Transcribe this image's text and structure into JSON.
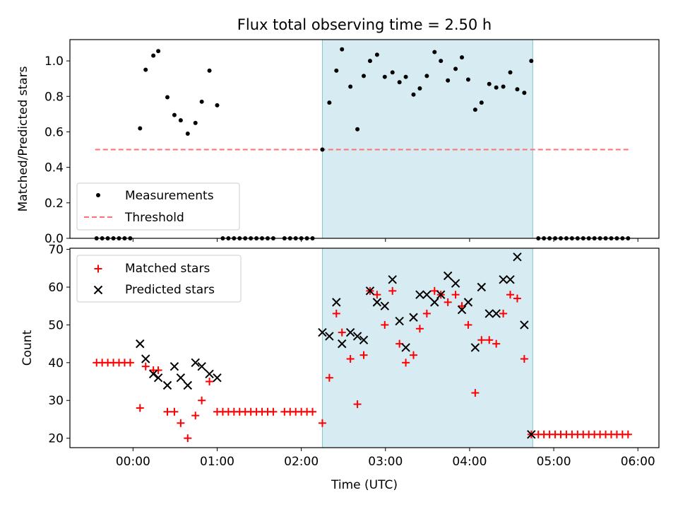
{
  "chart_data": [
    {
      "type": "scatter",
      "title": "Flux total observing time = 2.50 h",
      "xlabel": "",
      "ylabel": "Matched/Predicted stars",
      "ylim": [
        0,
        1.12
      ],
      "xlim": [
        -0.75,
        6.25
      ],
      "yticks": [
        "0.0",
        "0.2",
        "0.4",
        "0.6",
        "0.8",
        "1.0"
      ],
      "x_tick_labels": [],
      "shaded_region": [
        2.25,
        4.75
      ],
      "legend": "lower-left",
      "series": [
        {
          "name": "Measurements",
          "marker": "dot",
          "color": "#000000",
          "x": [
            -0.4333,
            -0.3667,
            -0.3,
            -0.2333,
            -0.1667,
            -0.1,
            -0.0333,
            0.0833,
            0.15,
            0.2417,
            0.3,
            0.4083,
            0.4917,
            0.5667,
            0.65,
            0.7417,
            0.8167,
            0.9083,
            1.0,
            1.0667,
            1.1333,
            1.2,
            1.2667,
            1.3333,
            1.4,
            1.4667,
            1.5333,
            1.6,
            1.6667,
            1.8,
            1.8667,
            1.9333,
            2.0,
            2.0667,
            2.1333,
            2.25,
            2.3333,
            2.4167,
            2.4833,
            2.5833,
            2.6667,
            2.7417,
            2.8167,
            2.9,
            2.9917,
            3.0833,
            3.1667,
            3.2417,
            3.3333,
            3.4083,
            3.4917,
            3.5833,
            3.6583,
            3.7417,
            3.8333,
            3.9083,
            3.9833,
            4.0667,
            4.1417,
            4.2333,
            4.3167,
            4.4,
            4.4833,
            4.5667,
            4.65,
            4.7333,
            4.8167,
            4.8833,
            4.95,
            5.0167,
            5.0833,
            5.15,
            5.2167,
            5.2833,
            5.35,
            5.4167,
            5.4833,
            5.55,
            5.6167,
            5.6833,
            5.75,
            5.8167,
            5.8833
          ],
          "y": [
            0,
            0,
            0,
            0,
            0,
            0,
            0,
            0.62,
            0.95,
            1.03,
            1.055,
            0.795,
            0.695,
            0.665,
            0.59,
            0.65,
            0.77,
            0.945,
            0.75,
            0,
            0,
            0,
            0,
            0,
            0,
            0,
            0,
            0,
            0,
            0,
            0,
            0,
            0,
            0,
            0,
            0.5,
            0.765,
            0.945,
            1.065,
            0.855,
            0.615,
            0.915,
            1.0,
            1.035,
            0.91,
            0.935,
            0.88,
            0.91,
            0.81,
            0.845,
            0.915,
            1.05,
            1.0,
            0.89,
            0.955,
            1.02,
            0.895,
            0.725,
            0.765,
            0.87,
            0.85,
            0.855,
            0.935,
            0.84,
            0.82,
            1.0,
            0,
            0,
            0,
            0,
            0,
            0,
            0,
            0,
            0,
            0,
            0,
            0,
            0,
            0,
            0,
            0,
            0
          ]
        },
        {
          "name": "Threshold",
          "marker": "dashed-line",
          "color": "#ff7070",
          "x": [
            -0.45,
            5.9
          ],
          "y": [
            0.5,
            0.5
          ]
        }
      ]
    },
    {
      "type": "scatter",
      "title": "",
      "xlabel": "Time (UTC)",
      "ylabel": "Count",
      "ylim": [
        17.5,
        70.3
      ],
      "xlim": [
        -0.75,
        6.25
      ],
      "yticks": [
        "20",
        "30",
        "40",
        "50",
        "60",
        "70"
      ],
      "x_tick_labels": [
        "00:00",
        "01:00",
        "02:00",
        "03:00",
        "04:00",
        "05:00",
        "06:00"
      ],
      "shaded_region": [
        2.25,
        4.75
      ],
      "legend": "upper-left",
      "series": [
        {
          "name": "Matched stars",
          "marker": "plus",
          "color": "#ff0000",
          "x": [
            -0.4333,
            -0.3667,
            -0.3,
            -0.2333,
            -0.1667,
            -0.1,
            -0.0333,
            0.0833,
            0.15,
            0.2417,
            0.3,
            0.4083,
            0.4917,
            0.5667,
            0.65,
            0.7417,
            0.8167,
            0.9083,
            1.0,
            1.0667,
            1.1333,
            1.2,
            1.2667,
            1.3333,
            1.4,
            1.4667,
            1.5333,
            1.6,
            1.6667,
            1.8,
            1.8667,
            1.9333,
            2.0,
            2.0667,
            2.1333,
            2.25,
            2.3333,
            2.4167,
            2.4833,
            2.5833,
            2.6667,
            2.7417,
            2.8167,
            2.9,
            2.9917,
            3.0833,
            3.1667,
            3.2417,
            3.3333,
            3.4083,
            3.4917,
            3.5833,
            3.6583,
            3.7417,
            3.8333,
            3.9083,
            3.9833,
            4.0667,
            4.1417,
            4.2333,
            4.3167,
            4.4,
            4.4833,
            4.5667,
            4.65,
            4.7333,
            4.8167,
            4.8833,
            4.95,
            5.0167,
            5.0833,
            5.15,
            5.2167,
            5.2833,
            5.35,
            5.4167,
            5.4833,
            5.55,
            5.6167,
            5.6833,
            5.75,
            5.8167,
            5.8833
          ],
          "y": [
            40,
            40,
            40,
            40,
            40,
            40,
            40,
            28,
            39,
            38,
            38,
            27,
            27,
            24,
            20,
            26,
            30,
            35,
            27,
            27,
            27,
            27,
            27,
            27,
            27,
            27,
            27,
            27,
            27,
            27,
            27,
            27,
            27,
            27,
            27,
            24,
            36,
            53,
            48,
            41,
            29,
            42,
            59,
            58,
            50,
            59,
            45,
            40,
            42,
            49,
            53,
            59,
            58,
            56,
            58,
            55,
            50,
            32,
            46,
            46,
            45,
            53,
            58,
            57,
            41,
            21,
            21,
            21,
            21,
            21,
            21,
            21,
            21,
            21,
            21,
            21,
            21,
            21,
            21,
            21,
            21,
            21,
            21
          ]
        },
        {
          "name": "Predicted stars",
          "marker": "x",
          "color": "#000000",
          "x": [
            0.0833,
            0.15,
            0.2417,
            0.3,
            0.4083,
            0.4917,
            0.5667,
            0.65,
            0.7417,
            0.8167,
            0.9083,
            1.0,
            2.25,
            2.3333,
            2.4167,
            2.4833,
            2.5833,
            2.6667,
            2.7417,
            2.8167,
            2.9,
            2.9917,
            3.0833,
            3.1667,
            3.2417,
            3.3333,
            3.4083,
            3.4917,
            3.5833,
            3.6583,
            3.7417,
            3.8333,
            3.9083,
            3.9833,
            4.0667,
            4.1417,
            4.2333,
            4.3167,
            4.4,
            4.4833,
            4.5667,
            4.65,
            4.7333
          ],
          "y": [
            45,
            41,
            37,
            36,
            34,
            39,
            36,
            34,
            40,
            39,
            37,
            36,
            48,
            47,
            56,
            45,
            48,
            47,
            46,
            59,
            56,
            55,
            62,
            51,
            44,
            52,
            58,
            58,
            56,
            58,
            63,
            61,
            54,
            56,
            44,
            60,
            53,
            53,
            62,
            62,
            68,
            50,
            21
          ]
        }
      ]
    }
  ]
}
